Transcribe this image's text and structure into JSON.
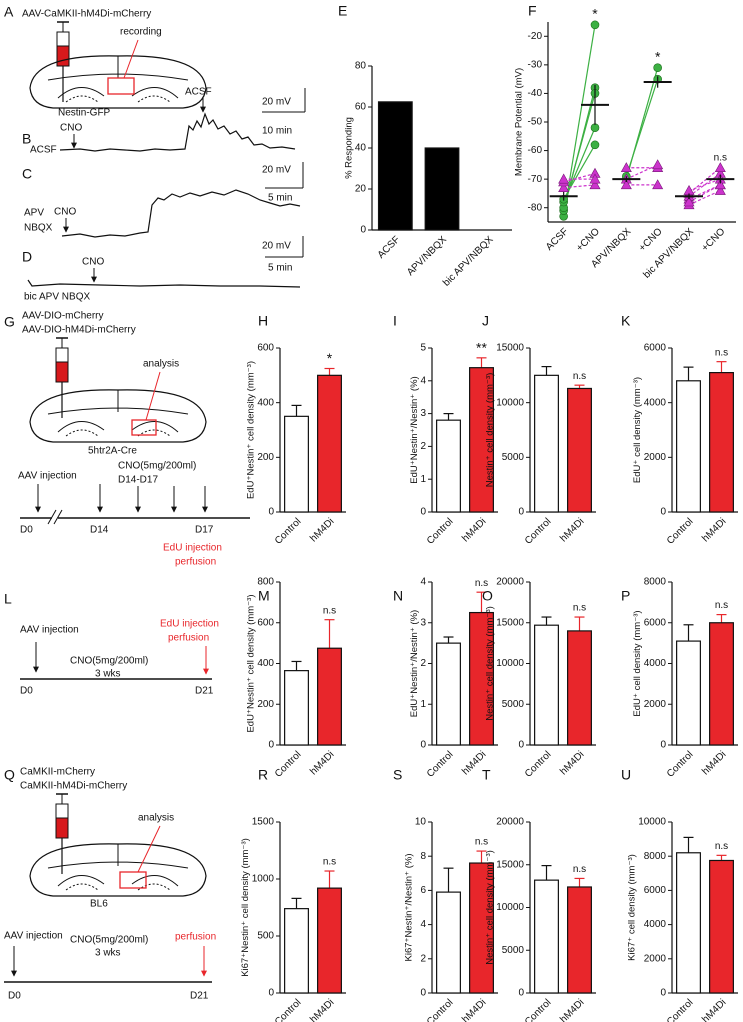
{
  "schematics": {
    "A": {
      "label": "A",
      "title": "AAV-CaMKII-hM4Di-mCherry",
      "target": "recording",
      "mouse": "Nestin-GFP"
    },
    "B": {
      "label": "B",
      "baseline": "ACSF",
      "drug": "CNO",
      "washout": "ACSF",
      "scale_y": "20 mV",
      "scale_x": "10 min"
    },
    "C": {
      "label": "C",
      "blocker_1": "APV",
      "blocker_2": "NBQX",
      "drug": "CNO",
      "scale_y": "20 mV",
      "scale_x": "5 min"
    },
    "D": {
      "label": "D",
      "blockers": "bic APV NBQX",
      "drug": "CNO",
      "scale_y": "20 mV",
      "scale_x": "5 min"
    },
    "G": {
      "label": "G",
      "virus_1": "AAV-DIO-mCherry",
      "virus_2": "AAV-DIO-hM4Di-mCherry",
      "target": "analysis",
      "mouse": "5htr2A-Cre",
      "injection": "AAV injection",
      "treatment": "CNO(5mg/200ml)",
      "treatment_days": "D14-D17",
      "day_start": "D0",
      "day_cno": "D14",
      "day_end": "D17",
      "endpoint_1": "EdU injection",
      "endpoint_2": "perfusion"
    },
    "L": {
      "label": "L",
      "injection": "AAV injection",
      "treatment": "CNO(5mg/200ml)",
      "duration": "3 wks",
      "day_start": "D0",
      "day_end": "D21",
      "endpoint_1": "EdU injection",
      "endpoint_2": "perfusion"
    },
    "Q": {
      "label": "Q",
      "virus_1": "CaMKII-mCherry",
      "virus_2": "CaMKII-hM4Di-mCherry",
      "target": "analysis",
      "mouse": "BL6",
      "injection": "AAV injection",
      "treatment": "CNO(5mg/200ml)",
      "duration": "3 wks",
      "day_start": "D0",
      "day_end": "D21",
      "endpoint": "perfusion"
    }
  },
  "chart_data": [
    {
      "type": "bar",
      "panel": "E",
      "ylabel": "% Responding",
      "categories": [
        "ACSF",
        "APV/NBQX",
        "bic APV/NBQX"
      ],
      "values": [
        62.5,
        40,
        0
      ],
      "colors": [
        "#000000",
        "#000000",
        "#000000"
      ],
      "ylim": [
        0,
        80
      ],
      "yticks": [
        0,
        20,
        40,
        60,
        80
      ]
    },
    {
      "type": "paired",
      "panel": "F",
      "ylabel": "Membrane Potential (mV)",
      "ylim": [
        -85,
        -15
      ],
      "yticks": [
        -80,
        -70,
        -60,
        -50,
        -40,
        -30,
        -20
      ],
      "responder_color": "#3cb043",
      "nonresponder_color": "#cc33cc",
      "groups": [
        {
          "name": "ACSF",
          "post_name": "+CNO",
          "mean": [
            -76,
            -44
          ],
          "sem": [
            1.5,
            7
          ],
          "significance": "*",
          "points": [
            {
              "pre": -83,
              "post": -16,
              "responding": true
            },
            {
              "pre": -81,
              "post": -38,
              "responding": true
            },
            {
              "pre": -80,
              "post": -40,
              "responding": true
            },
            {
              "pre": -78,
              "post": -52,
              "responding": true
            },
            {
              "pre": -77,
              "post": -58,
              "responding": true
            },
            {
              "pre": -73,
              "post": -72,
              "responding": false
            },
            {
              "pre": -71,
              "post": -68,
              "responding": false
            },
            {
              "pre": -70,
              "post": -70,
              "responding": false
            }
          ]
        },
        {
          "name": "APV/NBQX",
          "post_name": "+CNO",
          "mean": [
            -70,
            -36
          ],
          "sem": [
            1,
            2
          ],
          "significance": "*",
          "points": [
            {
              "pre": -70,
              "post": -31,
              "responding": true
            },
            {
              "pre": -69,
              "post": -35,
              "responding": true
            },
            {
              "pre": -66,
              "post": -66,
              "responding": false
            },
            {
              "pre": -70,
              "post": -65,
              "responding": false
            },
            {
              "pre": -72,
              "post": -72,
              "responding": false
            }
          ]
        },
        {
          "name": "bic APV/NBQX",
          "post_name": "+CNO",
          "mean": [
            -76,
            -70
          ],
          "sem": [
            1,
            1.5
          ],
          "significance": "n.s",
          "points": [
            {
              "pre": -79,
              "post": -74,
              "responding": false
            },
            {
              "pre": -77,
              "post": -72,
              "responding": false
            },
            {
              "pre": -76,
              "post": -68,
              "responding": false
            },
            {
              "pre": -75,
              "post": -66,
              "responding": false
            },
            {
              "pre": -74,
              "post": -70,
              "responding": false
            },
            {
              "pre": -78,
              "post": -72,
              "responding": false
            }
          ]
        }
      ]
    },
    {
      "type": "bar",
      "panel": "H",
      "ylabel": "EdU⁺Nestin⁺ cell density (mm⁻³)",
      "categories": [
        "Control",
        "hM4Di"
      ],
      "values": [
        350,
        500
      ],
      "errors": [
        40,
        25
      ],
      "colors": [
        "#ffffff",
        "#e8262b"
      ],
      "significance": "*",
      "ylim": [
        0,
        600
      ],
      "yticks": [
        0,
        200,
        400,
        600
      ]
    },
    {
      "type": "bar",
      "panel": "I",
      "ylabel": "EdU⁺Nestin⁺/Nestin⁺ (%)",
      "categories": [
        "Control",
        "hM4Di"
      ],
      "values": [
        2.8,
        4.4
      ],
      "errors": [
        0.2,
        0.3
      ],
      "colors": [
        "#ffffff",
        "#e8262b"
      ],
      "significance": "**",
      "ylim": [
        0,
        5
      ],
      "yticks": [
        0,
        1,
        2,
        3,
        4,
        5
      ]
    },
    {
      "type": "bar",
      "panel": "J",
      "ylabel": "Nestin⁺ cell density (mm⁻³)",
      "categories": [
        "Control",
        "hM4Di"
      ],
      "values": [
        12500,
        11300
      ],
      "errors": [
        800,
        300
      ],
      "colors": [
        "#ffffff",
        "#e8262b"
      ],
      "significance": "n.s",
      "ylim": [
        0,
        15000
      ],
      "yticks": [
        0,
        5000,
        10000,
        15000
      ]
    },
    {
      "type": "bar",
      "panel": "K",
      "ylabel": "EdU⁺ cell density (mm⁻³)",
      "categories": [
        "Control",
        "hM4Di"
      ],
      "values": [
        4800,
        5100
      ],
      "errors": [
        500,
        400
      ],
      "colors": [
        "#ffffff",
        "#e8262b"
      ],
      "significance": "n.s",
      "ylim": [
        0,
        6000
      ],
      "yticks": [
        0,
        2000,
        4000,
        6000
      ]
    },
    {
      "type": "bar",
      "panel": "M",
      "ylabel": "EdU⁺Nestin⁺ cell density (mm⁻³)",
      "categories": [
        "Control",
        "hM4Di"
      ],
      "values": [
        365,
        475
      ],
      "errors": [
        45,
        140
      ],
      "colors": [
        "#ffffff",
        "#e8262b"
      ],
      "significance": "n.s",
      "ylim": [
        0,
        800
      ],
      "yticks": [
        0,
        200,
        400,
        600,
        800
      ]
    },
    {
      "type": "bar",
      "panel": "N",
      "ylabel": "EdU⁺Nestin⁺/Nestin⁺ (%)",
      "categories": [
        "Control",
        "hM4Di"
      ],
      "values": [
        2.5,
        3.25
      ],
      "errors": [
        0.15,
        0.5
      ],
      "colors": [
        "#ffffff",
        "#e8262b"
      ],
      "significance": "n.s",
      "ylim": [
        0,
        4
      ],
      "yticks": [
        0,
        1,
        2,
        3,
        4
      ]
    },
    {
      "type": "bar",
      "panel": "O",
      "ylabel": "Nestin⁺ cell density (mm⁻³)",
      "categories": [
        "Control",
        "hM4Di"
      ],
      "values": [
        14700,
        14000
      ],
      "errors": [
        1000,
        1700
      ],
      "colors": [
        "#ffffff",
        "#e8262b"
      ],
      "significance": "n.s",
      "ylim": [
        0,
        20000
      ],
      "yticks": [
        0,
        5000,
        10000,
        15000,
        20000
      ]
    },
    {
      "type": "bar",
      "panel": "P",
      "ylabel": "EdU⁺ cell density (mm⁻³)",
      "categories": [
        "Control",
        "hM4Di"
      ],
      "values": [
        5100,
        6000
      ],
      "errors": [
        800,
        400
      ],
      "colors": [
        "#ffffff",
        "#e8262b"
      ],
      "significance": "n.s",
      "ylim": [
        0,
        8000
      ],
      "yticks": [
        0,
        2000,
        4000,
        6000,
        8000
      ]
    },
    {
      "type": "bar",
      "panel": "R",
      "ylabel": "Ki67⁺Nestin⁺ cell density (mm⁻³)",
      "categories": [
        "Control",
        "hM4Di"
      ],
      "values": [
        740,
        920
      ],
      "errors": [
        90,
        150
      ],
      "colors": [
        "#ffffff",
        "#e8262b"
      ],
      "significance": "n.s",
      "ylim": [
        0,
        1500
      ],
      "yticks": [
        0,
        500,
        1000,
        1500
      ]
    },
    {
      "type": "bar",
      "panel": "S",
      "ylabel": "Ki67⁺Nestin⁺/Nestin⁺ (%)",
      "categories": [
        "Control",
        "hM4Di"
      ],
      "values": [
        5.9,
        7.6
      ],
      "errors": [
        1.4,
        0.7
      ],
      "colors": [
        "#ffffff",
        "#e8262b"
      ],
      "significance": "n.s",
      "ylim": [
        0,
        10
      ],
      "yticks": [
        0,
        2,
        4,
        6,
        8,
        10
      ]
    },
    {
      "type": "bar",
      "panel": "T",
      "ylabel": "Nestin⁺ cell density (mm⁻³)",
      "categories": [
        "Control",
        "hM4Di"
      ],
      "values": [
        13200,
        12400
      ],
      "errors": [
        1700,
        1000
      ],
      "colors": [
        "#ffffff",
        "#e8262b"
      ],
      "significance": "n.s",
      "ylim": [
        0,
        20000
      ],
      "yticks": [
        0,
        5000,
        10000,
        15000,
        20000
      ]
    },
    {
      "type": "bar",
      "panel": "U",
      "ylabel": "Ki67⁺ cell density (mm⁻³)",
      "categories": [
        "Control",
        "hM4Di"
      ],
      "values": [
        8200,
        7750
      ],
      "errors": [
        900,
        300
      ],
      "colors": [
        "#ffffff",
        "#e8262b"
      ],
      "significance": "n.s",
      "ylim": [
        0,
        10000
      ],
      "yticks": [
        0,
        2000,
        4000,
        6000,
        8000,
        10000
      ]
    }
  ]
}
